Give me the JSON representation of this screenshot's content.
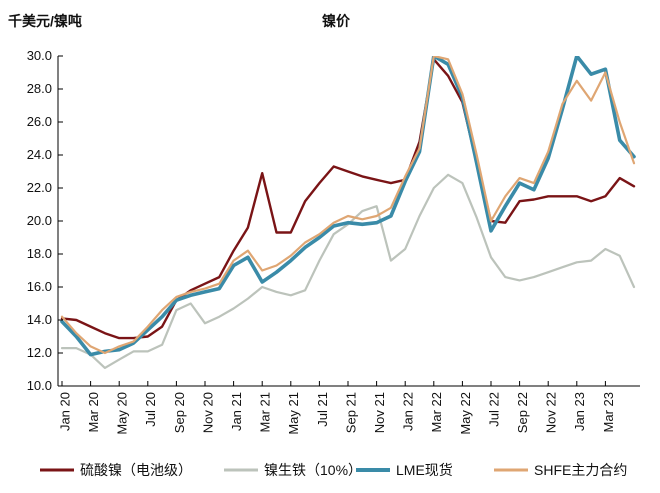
{
  "chart_data": {
    "type": "line",
    "title": "镍价",
    "ylabel": "千美元/镍吨",
    "xlabel": "",
    "ylim": [
      10,
      30
    ],
    "yticks": [
      "10.0",
      "12.0",
      "14.0",
      "16.0",
      "18.0",
      "20.0",
      "22.0",
      "24.0",
      "26.0",
      "28.0",
      "30.0"
    ],
    "xticks": [
      "Jan 20",
      "Mar 20",
      "May 20",
      "Jul 20",
      "Sep 20",
      "Nov 20",
      "Jan 21",
      "Mar 21",
      "May 21",
      "Jul 21",
      "Sep 21",
      "Nov 21",
      "Jan 22",
      "Mar 22",
      "May 22",
      "Jul 22",
      "Sep 22",
      "Nov 22",
      "Jan 23",
      "Mar 23"
    ],
    "x_months": [
      0,
      1,
      2,
      3,
      4,
      5,
      6,
      7,
      8,
      9,
      10,
      11,
      12,
      13,
      14,
      15,
      16,
      17,
      18,
      19,
      20,
      21,
      22,
      23,
      24,
      25,
      26,
      27,
      28,
      29,
      30,
      31,
      32,
      33,
      34,
      35,
      36,
      37,
      38,
      39,
      40
    ],
    "legend_position": "bottom",
    "grid": false,
    "series": [
      {
        "name": "硫酸镍（电池级）",
        "color": "#7a1416",
        "values": [
          14.1,
          14.0,
          13.6,
          13.2,
          12.9,
          12.9,
          13.0,
          13.6,
          15.2,
          15.8,
          16.2,
          16.6,
          18.2,
          19.6,
          22.9,
          19.3,
          19.3,
          21.2,
          22.3,
          23.3,
          23.0,
          22.7,
          22.5,
          22.3,
          22.5,
          24.8,
          29.8,
          28.8,
          27.2,
          23.5,
          20.0,
          19.9,
          21.2,
          21.3,
          21.5,
          21.5,
          21.5,
          21.2,
          21.5,
          22.6,
          22.1
        ]
      },
      {
        "name": "镍生铁（10%）",
        "color": "#bcc3bb",
        "values": [
          12.3,
          12.3,
          11.9,
          11.1,
          11.6,
          12.1,
          12.1,
          12.5,
          14.6,
          15.0,
          13.8,
          14.2,
          14.7,
          15.3,
          16.0,
          15.7,
          15.5,
          15.8,
          17.6,
          19.2,
          19.8,
          20.6,
          20.9,
          17.6,
          18.3,
          20.3,
          22.0,
          22.8,
          22.3,
          20.2,
          17.8,
          16.6,
          16.4,
          16.6,
          16.9,
          17.2,
          17.5,
          17.6,
          18.3,
          17.9,
          16.0
        ]
      },
      {
        "name": "LME现货",
        "color": "#3a8ba8",
        "values": [
          13.9,
          13.0,
          11.9,
          12.1,
          12.2,
          12.6,
          13.4,
          14.2,
          15.2,
          15.5,
          15.7,
          15.9,
          17.3,
          17.8,
          16.3,
          16.9,
          17.6,
          18.4,
          19.0,
          19.7,
          19.9,
          19.8,
          19.9,
          20.3,
          22.4,
          24.2,
          30.0,
          29.5,
          27.5,
          23.5,
          19.4,
          20.9,
          22.3,
          21.9,
          23.8,
          26.8,
          30.0,
          28.9,
          29.2,
          24.9,
          23.9
        ]
      },
      {
        "name": "SHFE主力合约",
        "color": "#dfa673",
        "values": [
          14.2,
          13.2,
          12.4,
          12.0,
          12.4,
          12.7,
          13.6,
          14.6,
          15.4,
          15.7,
          15.9,
          16.2,
          17.6,
          18.2,
          17.0,
          17.3,
          17.9,
          18.7,
          19.2,
          19.9,
          20.3,
          20.1,
          20.3,
          20.8,
          22.7,
          24.4,
          30.0,
          29.8,
          27.7,
          24.0,
          20.0,
          21.5,
          22.6,
          22.3,
          24.2,
          27.1,
          28.5,
          27.3,
          29.0,
          26.0,
          23.5
        ]
      }
    ]
  }
}
